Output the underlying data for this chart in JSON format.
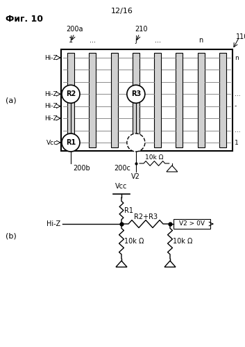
{
  "title": "Фиг. 10",
  "header_label": "12/16",
  "bg_color": "#ffffff",
  "line_color": "#000000",
  "label_a": "(a)",
  "label_b": "(b)",
  "labels_left": [
    "Vcc",
    "Hi-Z",
    "Hi-Z",
    "Hi-Z",
    "Hi-Z"
  ],
  "label_200a": "200a",
  "label_200b": "200b",
  "label_200c": "200c",
  "label_210": "210",
  "label_110": "110",
  "label_V2": "V2",
  "label_10k": "10k Ω",
  "label_R1": "R1",
  "label_R2": "R2",
  "label_R3": "R3",
  "label_R2R3": "R2+R3",
  "label_HiZ_b": "Hi-Z",
  "label_Vcc_b": "Vcc",
  "label_R1_b": "R1",
  "label_V2_cond": "V2 > 0V",
  "label_10k_b1": "10k Ω",
  "label_10k_b2": "10k Ω"
}
